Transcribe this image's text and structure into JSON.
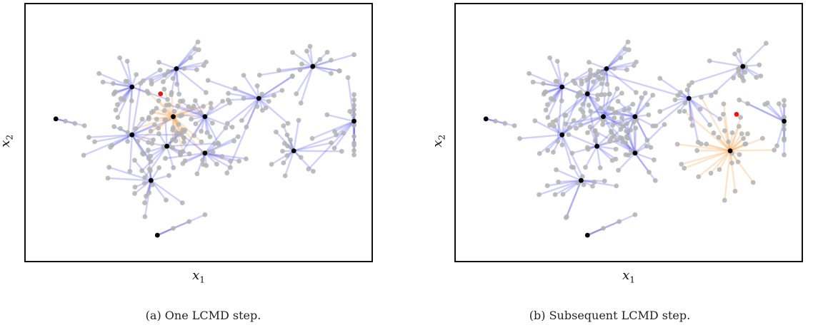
{
  "figure": {
    "x_label": "x",
    "x_sub": "1",
    "y_label": "x",
    "y_sub": "2"
  },
  "colors": {
    "pool_point": "#b3b3b3",
    "link_blue": "#5555ee",
    "link_orange": "#f5a04a",
    "center": "#000000",
    "candidate": "#ee1111"
  },
  "chart_data": [
    {
      "type": "scatter",
      "caption": "(a) One LCMD step.",
      "xlabel": "x1",
      "ylabel": "x2",
      "grid": false,
      "xlim": [
        0,
        1
      ],
      "ylim": [
        0,
        1
      ],
      "centers": [
        {
          "x": 0.05,
          "y": 0.56,
          "links": "blue"
        },
        {
          "x": 0.29,
          "y": 0.7,
          "links": "blue"
        },
        {
          "x": 0.43,
          "y": 0.78,
          "links": "blue"
        },
        {
          "x": 0.42,
          "y": 0.57,
          "links": "orange"
        },
        {
          "x": 0.29,
          "y": 0.49,
          "links": "blue"
        },
        {
          "x": 0.4,
          "y": 0.44,
          "links": "blue"
        },
        {
          "x": 0.52,
          "y": 0.41,
          "links": "blue"
        },
        {
          "x": 0.52,
          "y": 0.57,
          "links": "blue"
        },
        {
          "x": 0.35,
          "y": 0.29,
          "links": "blue"
        },
        {
          "x": 0.69,
          "y": 0.65,
          "links": "blue"
        },
        {
          "x": 0.86,
          "y": 0.79,
          "links": "blue"
        },
        {
          "x": 0.8,
          "y": 0.42,
          "links": "blue"
        },
        {
          "x": 0.99,
          "y": 0.55,
          "links": "blue"
        },
        {
          "x": 0.37,
          "y": 0.05,
          "links": "blue"
        }
      ],
      "candidate": {
        "x": 0.38,
        "y": 0.67
      }
    },
    {
      "type": "scatter",
      "caption": "(b) Subsequent LCMD step.",
      "xlabel": "x1",
      "ylabel": "x2",
      "grid": false,
      "xlim": [
        0,
        1
      ],
      "ylim": [
        0,
        1
      ],
      "centers": [
        {
          "x": 0.05,
          "y": 0.56,
          "links": "blue"
        },
        {
          "x": 0.29,
          "y": 0.7,
          "links": "blue"
        },
        {
          "x": 0.43,
          "y": 0.78,
          "links": "blue"
        },
        {
          "x": 0.37,
          "y": 0.67,
          "links": "blue"
        },
        {
          "x": 0.42,
          "y": 0.57,
          "links": "blue"
        },
        {
          "x": 0.29,
          "y": 0.49,
          "links": "blue"
        },
        {
          "x": 0.4,
          "y": 0.44,
          "links": "blue"
        },
        {
          "x": 0.52,
          "y": 0.41,
          "links": "blue"
        },
        {
          "x": 0.52,
          "y": 0.57,
          "links": "blue"
        },
        {
          "x": 0.35,
          "y": 0.29,
          "links": "blue"
        },
        {
          "x": 0.69,
          "y": 0.65,
          "links": "blue"
        },
        {
          "x": 0.86,
          "y": 0.79,
          "links": "blue"
        },
        {
          "x": 0.82,
          "y": 0.42,
          "links": "orange"
        },
        {
          "x": 0.99,
          "y": 0.55,
          "links": "blue"
        },
        {
          "x": 0.37,
          "y": 0.05,
          "links": "blue"
        }
      ],
      "candidate": {
        "x": 0.84,
        "y": 0.58
      }
    }
  ]
}
